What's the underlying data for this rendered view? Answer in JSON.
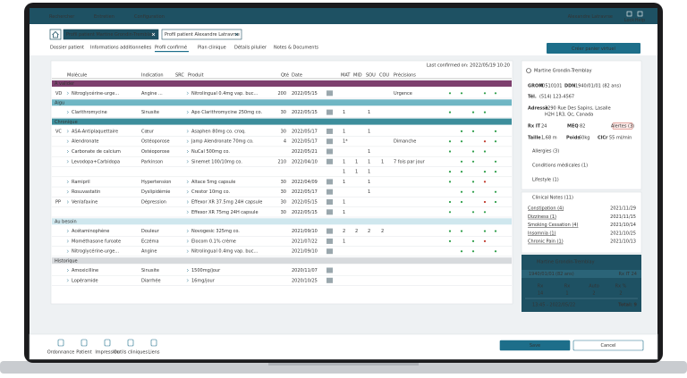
{
  "nav": {
    "items": [
      "Rechercher",
      "Entretien",
      "Configuration"
    ],
    "user": "Alexandre Latravrse",
    "icons": [
      "Lock",
      "Help"
    ]
  },
  "tabs": [
    "Profil patient Martine Grondin-Tremblay",
    "Profil patient Alexandre Latravrse"
  ],
  "create_button": "Créer panier virtuel",
  "subtabs": [
    "Dossier patient",
    "Informations additionnelles",
    "Profil confirmé",
    "Plan clinique",
    "Détails pilulier",
    "Notes & Documents"
  ],
  "table": {
    "last_confirmed": "Last confirmed on: 2022/05/19 10:20",
    "headers": [
      "Molécule",
      "Indication",
      "SRC",
      "Produit",
      "Qté",
      "Date",
      "MAT",
      "MID",
      "SOU",
      "COU",
      "Précisions"
    ],
    "sections": [
      {
        "title": "À valider",
        "rows": [
          {
            "prefix": "VD",
            "molecule": "Nitroglycérine-urge...",
            "indication": "Angine ...",
            "produit": "Nitrolingual 0.4mg vap. buc...",
            "qte": 200,
            "date": "2022/05/15",
            "precisions": "Urgence"
          }
        ]
      },
      {
        "title": "Aigu",
        "rows": [
          {
            "molecule": "Clarithromycine",
            "indication": "Sinusite",
            "produit": "Apo Clarithromycine 250mg co.",
            "qte": 30,
            "date": "2022/05/15",
            "mat": "1",
            "sou": "1"
          }
        ]
      },
      {
        "title": "Chronique",
        "rows": [
          {
            "prefix": "VC",
            "molecule": "ASA-Antiplaquettaire",
            "indication": "Cœur",
            "produit": "Asaphen 80mg co. croq.",
            "qte": 30,
            "date": "2022/05/17",
            "mat": "1",
            "sou": "1"
          },
          {
            "molecule": "Alendronate",
            "indication": "Ostéoporose",
            "produit": "Jamp Alendronate 70mg co.",
            "qte": 4,
            "date": "2022/05/17",
            "mat": "1*",
            "precisions": "Dimanche"
          },
          {
            "molecule": "Carbonate de calcium",
            "indication": "Ostéoporose",
            "produit": "NuCal 500mg co.",
            "date": "2022/05/21",
            "sou": "1"
          },
          {
            "molecule": "Levodopa+Carbidopa",
            "indication": "Parkinson",
            "produit": "Sinemet 100/10mg co.",
            "qte": 210,
            "date": "2022/04/10",
            "mat": "1",
            "mid": "1",
            "sou": "1",
            "cou": "1",
            "precisions": "7 fois par jour"
          },
          {
            "mat": "1",
            "mid": "1",
            "sou": "1"
          },
          {
            "molecule": "Ramipril",
            "indication": "Hypertension",
            "produit": "Altace 5mg capsule",
            "qte": 30,
            "date": "2022/04/09",
            "mat": "1",
            "sou": "1"
          },
          {
            "molecule": "Rosuvastatin",
            "indication": "Dyslipidémie",
            "produit": "Crestor 10mg co.",
            "qte": 30,
            "date": "2022/05/17",
            "sou": "1"
          },
          {
            "prefix": "PP",
            "molecule": "Venlafaxine",
            "indication": "Dépression",
            "produit": "Effexor XR 37.5mg 24H capsule",
            "qte": 30,
            "date": "2022/05/15",
            "mat": "1"
          },
          {
            "produit": "Effexor XR 75mg 24H capsule",
            "qte": 30,
            "date": "2022/05/15",
            "mat": "1"
          }
        ]
      },
      {
        "title": "Au besoin",
        "rows": [
          {
            "molecule": "Acétaminophène",
            "indication": "Douleur",
            "produit": "Novogesic 325mg co.",
            "date": "2021/09/10",
            "mat": "2",
            "mid": "2",
            "sou": "2",
            "cou": "2"
          },
          {
            "molecule": "Mométhasone furoate",
            "indication": "Eczéma",
            "produit": "Elocom 0.1% crème",
            "date": "2021/07/22",
            "mat": "1"
          },
          {
            "molecule": "Nitroglycérine-urge...",
            "indication": "Angine",
            "produit": "Nitrolingual 0.4mg vap. buc...",
            "date": "2021/09/10"
          }
        ]
      },
      {
        "title": "Historique",
        "rows": [
          {
            "molecule": "Amoxicilline",
            "indication": "Sinusite",
            "produit": "1500mg/jour",
            "date": "2020/11/07"
          },
          {
            "molecule": "Lopéramide",
            "indication": "Diarrhée",
            "produit": "16mg/jour",
            "date": "2020/10/25"
          }
        ]
      }
    ]
  },
  "patient": {
    "name": "Martine Grondin-Tremblay",
    "grom_label": "GROM",
    "grom": "40510101",
    "ddn_label": "DDN",
    "ddn": "1940/01/01 (82 ans)",
    "tel_label": "Tél.",
    "tel": "(514) 123-4567",
    "address_label": "Adresse",
    "address": [
      "3290 Rue Des Sapins, Lasalle",
      "H2H 1R3, Qc, Canada"
    ],
    "rxit_label": "Rx IT",
    "rxit": "24",
    "meq_label": "MEQ",
    "meq": "82",
    "alerts": "Alertes (3)",
    "taille_label": "Taille",
    "taille": "1,68 m",
    "poids_label": "Poids",
    "poids": "60kg",
    "clcr_label": "ClCr",
    "clcr": "55 ml/min"
  },
  "expanders": [
    "Allergies (3)",
    "Conditions médicales (1)",
    "Lifestyle (1)"
  ],
  "notes": {
    "title": "Clinical Notes (11)",
    "items": [
      {
        "label": "Constipation (4)",
        "date": "2021/11/29"
      },
      {
        "label": "Dizziness (1)",
        "date": "2021/11/15"
      },
      {
        "label": "Smoking Cessation (4)",
        "date": "2021/10/14"
      },
      {
        "label": "Insomnia (1)",
        "date": "2021/10/25"
      },
      {
        "label": "Chronic Pain (1)",
        "date": "2021/10/13"
      }
    ]
  },
  "card": {
    "name": "Martine Grondin-Tremblay",
    "ddn": "1940/01/01",
    "age": "(82 ans)",
    "rxit": "Rx IT 24",
    "stats": [
      {
        "label": "Rx",
        "value": "14"
      },
      {
        "label": "Rx",
        "value": "1"
      },
      {
        "label": "Auto",
        "value": "2"
      },
      {
        "label": "Rx %",
        "value": "2"
      }
    ],
    "time": "13:45 - 2022/05/22",
    "total": "Total: 9"
  },
  "toolbar": [
    "Ordonnance",
    "Patient",
    "Impression",
    "Outils cliniques",
    "Liens"
  ],
  "actions": [
    "Save",
    "Cancel"
  ]
}
